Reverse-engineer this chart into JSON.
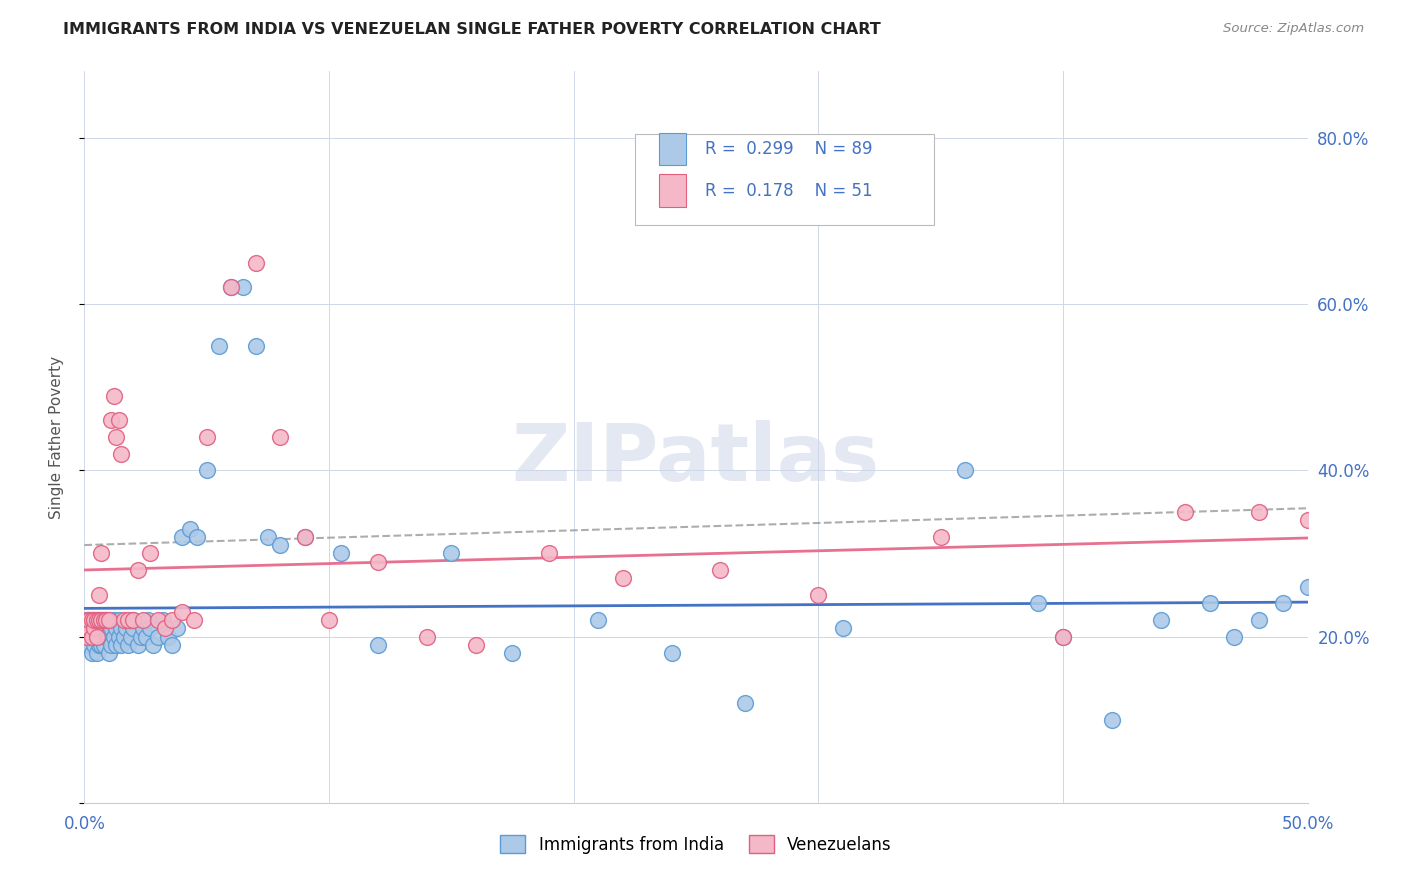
{
  "title": "IMMIGRANTS FROM INDIA VS VENEZUELAN SINGLE FATHER POVERTY CORRELATION CHART",
  "source": "Source: ZipAtlas.com",
  "ylabel": "Single Father Poverty",
  "xlim": [
    0.0,
    0.5
  ],
  "ylim": [
    0.0,
    0.88
  ],
  "india_color": "#adc9e8",
  "india_edge_color": "#5b9bd5",
  "venezuela_color": "#f4b8c8",
  "venezuela_edge_color": "#e06080",
  "india_line_color": "#4472c4",
  "venezuela_line_color": "#e87090",
  "india_R": 0.299,
  "india_N": 89,
  "venezuela_R": 0.178,
  "venezuela_N": 51,
  "watermark": "ZIPatlas",
  "india_x": [
    0.001,
    0.001,
    0.002,
    0.002,
    0.002,
    0.003,
    0.003,
    0.003,
    0.003,
    0.004,
    0.004,
    0.004,
    0.004,
    0.005,
    0.005,
    0.005,
    0.005,
    0.006,
    0.006,
    0.006,
    0.006,
    0.007,
    0.007,
    0.007,
    0.008,
    0.008,
    0.008,
    0.009,
    0.009,
    0.01,
    0.01,
    0.01,
    0.011,
    0.011,
    0.012,
    0.012,
    0.013,
    0.013,
    0.014,
    0.014,
    0.015,
    0.015,
    0.016,
    0.017,
    0.018,
    0.019,
    0.02,
    0.02,
    0.022,
    0.023,
    0.024,
    0.025,
    0.026,
    0.027,
    0.028,
    0.03,
    0.032,
    0.034,
    0.036,
    0.038,
    0.04,
    0.043,
    0.046,
    0.05,
    0.055,
    0.06,
    0.065,
    0.07,
    0.075,
    0.08,
    0.09,
    0.105,
    0.12,
    0.15,
    0.175,
    0.21,
    0.24,
    0.27,
    0.31,
    0.36,
    0.39,
    0.4,
    0.42,
    0.44,
    0.46,
    0.47,
    0.48,
    0.49,
    0.5
  ],
  "india_y": [
    0.2,
    0.22,
    0.19,
    0.21,
    0.22,
    0.2,
    0.22,
    0.18,
    0.21,
    0.2,
    0.22,
    0.19,
    0.21,
    0.2,
    0.22,
    0.18,
    0.21,
    0.2,
    0.22,
    0.19,
    0.21,
    0.2,
    0.22,
    0.19,
    0.2,
    0.22,
    0.19,
    0.2,
    0.22,
    0.2,
    0.22,
    0.18,
    0.21,
    0.19,
    0.2,
    0.22,
    0.19,
    0.21,
    0.2,
    0.22,
    0.21,
    0.19,
    0.2,
    0.21,
    0.19,
    0.2,
    0.21,
    0.22,
    0.19,
    0.2,
    0.21,
    0.2,
    0.22,
    0.21,
    0.19,
    0.2,
    0.22,
    0.2,
    0.19,
    0.21,
    0.32,
    0.33,
    0.32,
    0.4,
    0.55,
    0.62,
    0.62,
    0.55,
    0.32,
    0.31,
    0.32,
    0.3,
    0.19,
    0.3,
    0.18,
    0.22,
    0.18,
    0.12,
    0.21,
    0.4,
    0.24,
    0.2,
    0.1,
    0.22,
    0.24,
    0.2,
    0.22,
    0.24,
    0.26
  ],
  "venezuela_x": [
    0.001,
    0.001,
    0.002,
    0.002,
    0.003,
    0.003,
    0.004,
    0.004,
    0.005,
    0.005,
    0.006,
    0.006,
    0.007,
    0.007,
    0.008,
    0.009,
    0.01,
    0.011,
    0.012,
    0.013,
    0.014,
    0.015,
    0.016,
    0.018,
    0.02,
    0.022,
    0.024,
    0.027,
    0.03,
    0.033,
    0.036,
    0.04,
    0.045,
    0.05,
    0.06,
    0.07,
    0.08,
    0.09,
    0.1,
    0.12,
    0.14,
    0.16,
    0.19,
    0.22,
    0.26,
    0.3,
    0.35,
    0.4,
    0.45,
    0.48,
    0.5
  ],
  "venezuela_y": [
    0.2,
    0.22,
    0.21,
    0.22,
    0.2,
    0.22,
    0.21,
    0.22,
    0.2,
    0.22,
    0.25,
    0.22,
    0.3,
    0.22,
    0.22,
    0.22,
    0.22,
    0.46,
    0.49,
    0.44,
    0.46,
    0.42,
    0.22,
    0.22,
    0.22,
    0.28,
    0.22,
    0.3,
    0.22,
    0.21,
    0.22,
    0.23,
    0.22,
    0.44,
    0.62,
    0.65,
    0.44,
    0.32,
    0.22,
    0.29,
    0.2,
    0.19,
    0.3,
    0.27,
    0.28,
    0.25,
    0.32,
    0.2,
    0.35,
    0.35,
    0.34
  ]
}
